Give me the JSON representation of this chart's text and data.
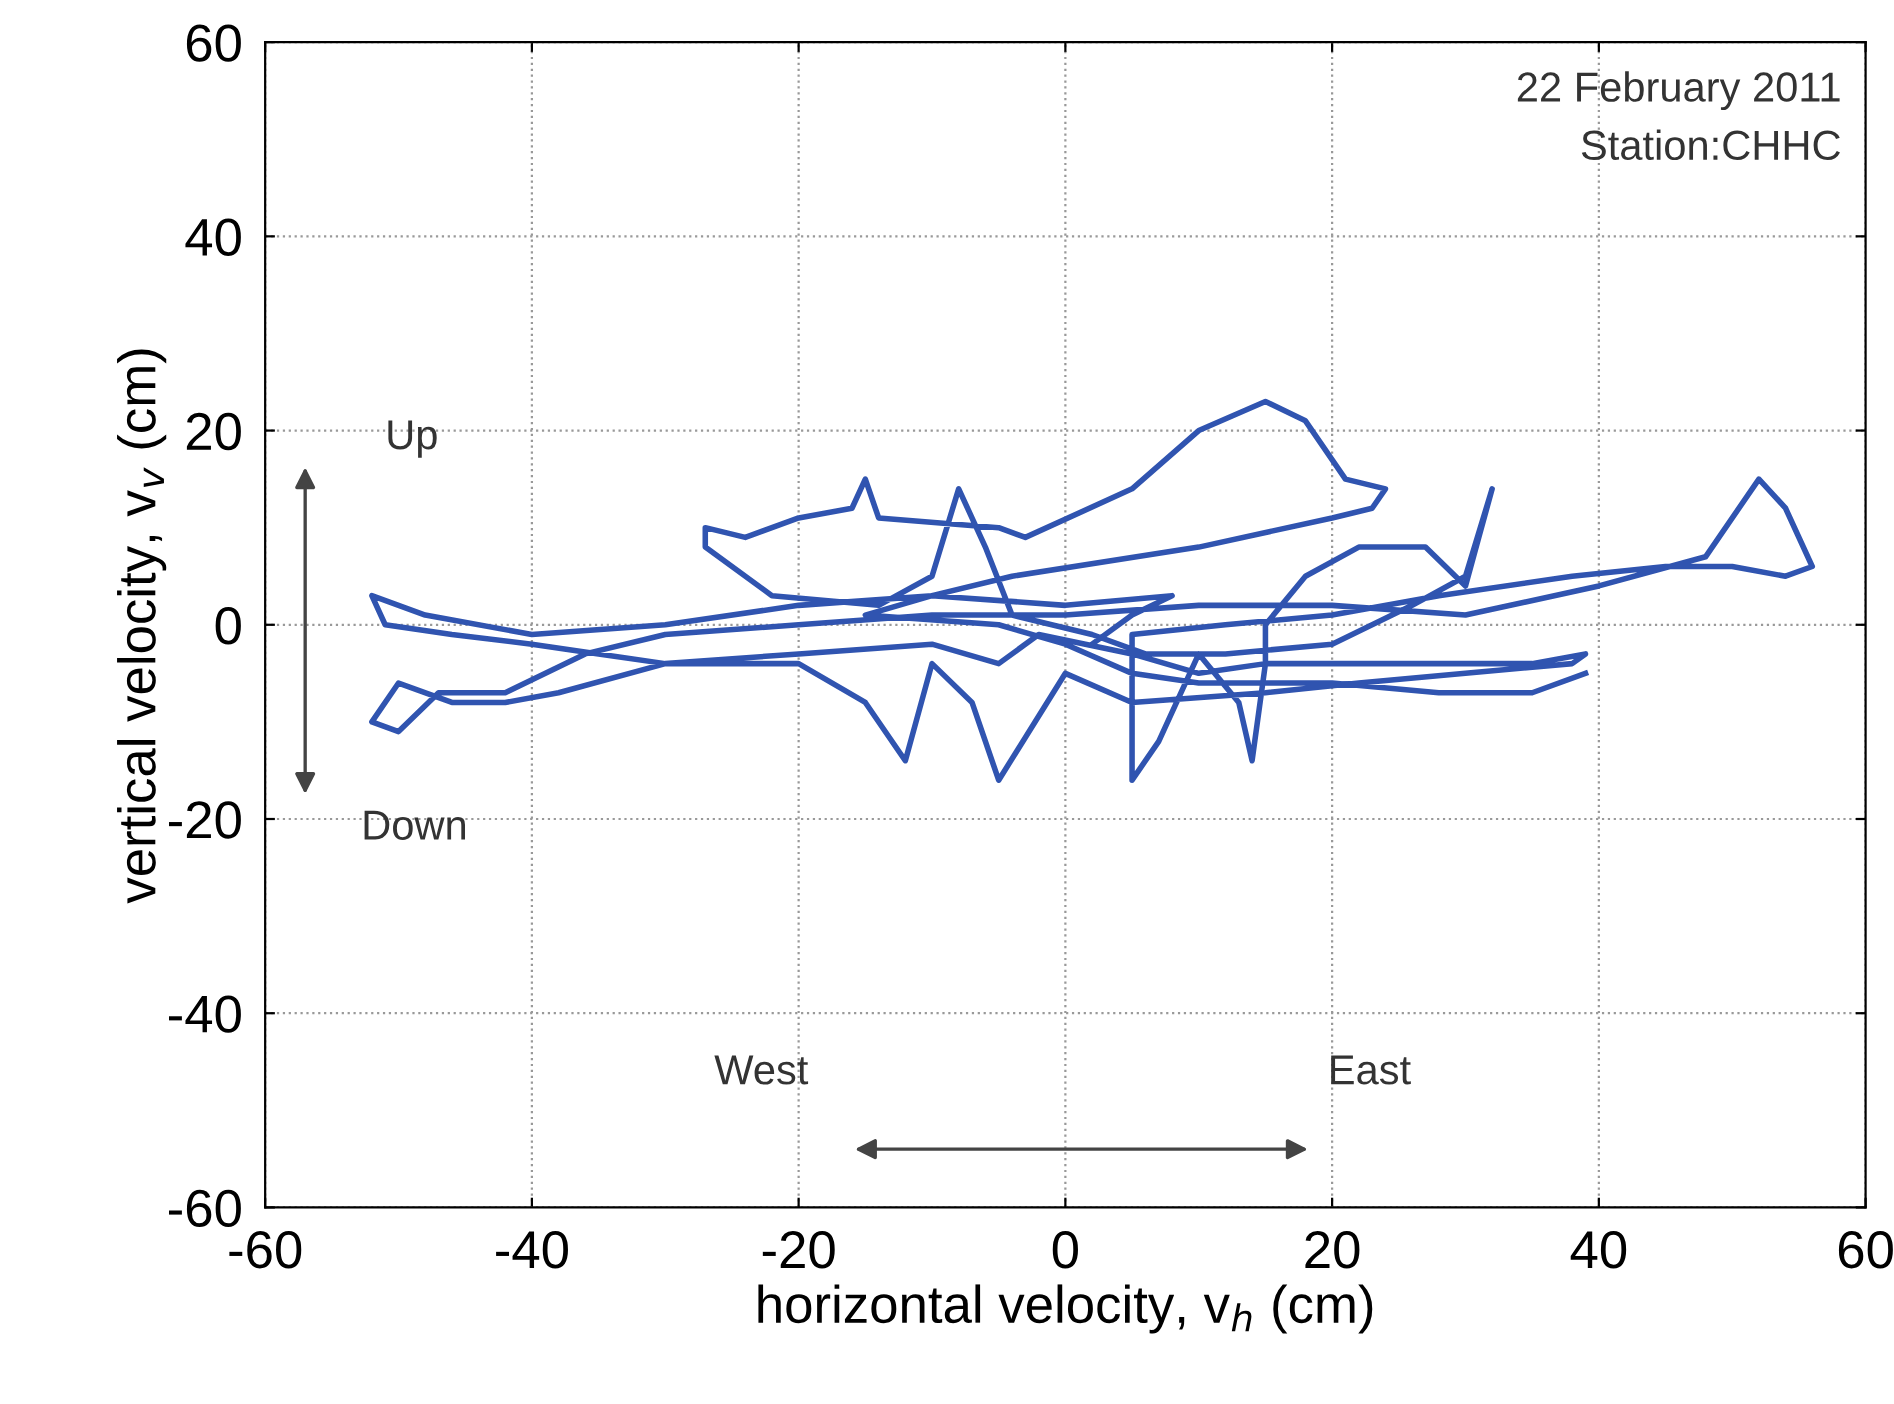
{
  "chart_data": {
    "type": "line",
    "xlabel": "horizontal velocity, v$_{h}$ (cm)",
    "ylabel": "vertical velocity, v$_{v}$ (cm)",
    "annotations": [
      "22 February 2011",
      "Station:CHHC",
      "Up",
      "Down",
      "West",
      "East"
    ],
    "xlim": [
      -60,
      60
    ],
    "ylim": [
      -60,
      60
    ],
    "xticks": [
      -60,
      -40,
      -20,
      0,
      20,
      40,
      60
    ],
    "yticks": [
      -60,
      -40,
      -20,
      0,
      20,
      40,
      60
    ],
    "grid": true,
    "marker": "none",
    "line_style": "solid",
    "series": [
      {
        "color": "#3054b0",
        "x": [
          2,
          5,
          8,
          0,
          -10,
          -20,
          -30,
          -40,
          -48,
          -52,
          -51,
          -46,
          -40,
          -35,
          -30,
          -20,
          -10,
          -5,
          -2,
          5,
          10,
          15,
          25,
          35,
          39,
          38,
          30,
          22,
          15,
          5,
          0,
          -5,
          -7,
          -10,
          -12,
          -15,
          -20,
          -30,
          -38,
          -42,
          -46,
          -50,
          -52,
          -50,
          -47,
          -42,
          -36,
          -30,
          -20,
          -10,
          0,
          10,
          20,
          30,
          40,
          48,
          52,
          54,
          56,
          54,
          50,
          45,
          38,
          28,
          20,
          12,
          5,
          5,
          7,
          10,
          13,
          14,
          15,
          15,
          18,
          22,
          27,
          30,
          31,
          32,
          30,
          26,
          20,
          12,
          6,
          2,
          -4,
          -6,
          -8,
          -10,
          -14,
          -22,
          -27,
          -27,
          -24,
          -20,
          -16,
          -15,
          -14,
          -5,
          -3,
          5,
          10,
          15,
          18,
          21,
          24,
          23,
          20,
          10,
          -4,
          -10,
          -15,
          -5,
          0,
          5,
          10,
          20,
          28,
          35,
          39
        ],
        "values": [
          -2,
          1,
          3,
          2,
          3,
          2,
          0,
          -1,
          1,
          3,
          0,
          -1,
          -2,
          -3,
          -4,
          -3,
          -2,
          -4,
          -1,
          -3,
          -5,
          -4,
          -4,
          -4,
          -3,
          -4,
          -5,
          -6,
          -7,
          -8,
          -5,
          -16,
          -8,
          -4,
          -14,
          -8,
          -4,
          -4,
          -7,
          -8,
          -8,
          -6,
          -10,
          -11,
          -7,
          -7,
          -3,
          -1,
          0,
          1,
          1,
          2,
          2,
          1,
          4,
          7,
          15,
          12,
          6,
          5,
          6,
          6,
          5,
          3,
          1,
          0,
          -1,
          -16,
          -12,
          -3,
          -8,
          -14,
          -4,
          0,
          5,
          8,
          8,
          4,
          9,
          14,
          5,
          2,
          -2,
          -3,
          -3,
          -1,
          1,
          8,
          14,
          5,
          2,
          3,
          8,
          10,
          9,
          11,
          12,
          15,
          11,
          10,
          9,
          14,
          20,
          23,
          21,
          15,
          14,
          12,
          11,
          8,
          5,
          3,
          1,
          0,
          -2,
          -5,
          -6,
          -6,
          -7,
          -7,
          -5
        ]
      }
    ]
  }
}
